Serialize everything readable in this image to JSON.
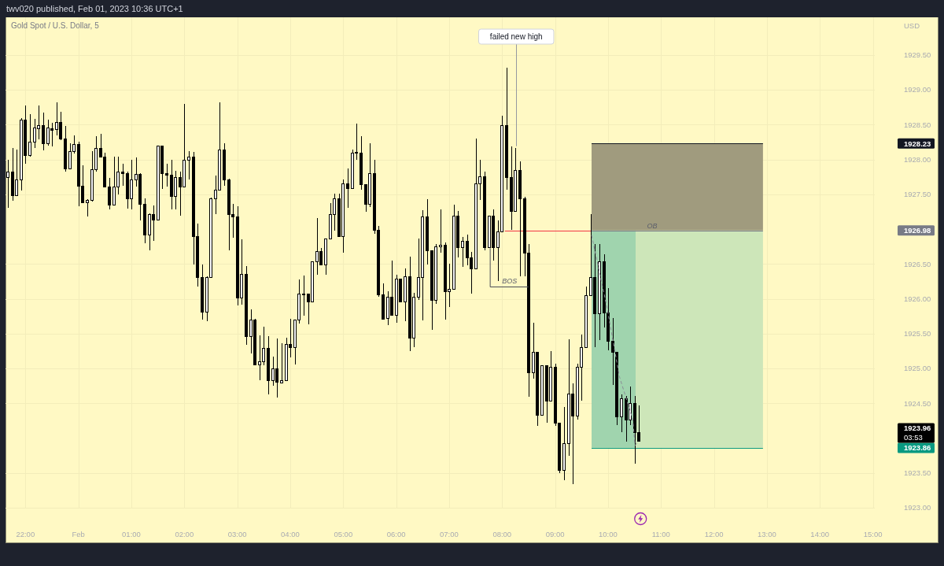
{
  "chart_data": {
    "type": "candlestick",
    "title": "Gold Spot / U.S. Dollar, 5",
    "ylabel": "USD",
    "categories": [
      null,
      null,
      null,
      null,
      "22:00",
      null,
      null,
      null,
      null,
      null,
      null,
      null,
      null,
      null,
      null,
      null,
      "Feb",
      null,
      null,
      null,
      null,
      null,
      null,
      null,
      null,
      null,
      null,
      null,
      "01:00",
      null,
      null,
      null,
      null,
      null,
      null,
      null,
      null,
      null,
      null,
      null,
      "02:00",
      null,
      null,
      null,
      null,
      null,
      null,
      null,
      null,
      null,
      null,
      null,
      "03:00",
      null,
      null,
      null,
      null,
      null,
      null,
      null,
      null,
      null,
      null,
      null,
      "04:00",
      null,
      null,
      null,
      null,
      null,
      null,
      null,
      null,
      null,
      null,
      null,
      "05:00",
      null,
      null,
      null,
      null,
      null,
      null,
      null,
      null,
      null,
      null,
      null,
      "06:00",
      null,
      null,
      null,
      null,
      null,
      null,
      null,
      null,
      null,
      null,
      null,
      "07:00",
      null,
      null,
      null,
      null,
      null,
      null,
      null,
      null,
      null,
      null,
      null,
      "08:00",
      null,
      null,
      null,
      null,
      null,
      null,
      null,
      null,
      null,
      null,
      null,
      "09:00",
      null,
      null,
      null,
      null,
      null,
      null,
      null,
      null,
      null,
      null,
      null,
      "10:00",
      null,
      null,
      null,
      null,
      null,
      null,
      null,
      null,
      null,
      null,
      null,
      "11:00",
      null,
      null,
      null,
      null,
      null,
      null,
      null,
      null,
      null,
      null,
      null,
      "12:00",
      null,
      null,
      null,
      null,
      null,
      null,
      null,
      null,
      null,
      null,
      null,
      "13:00",
      null,
      null,
      null,
      null,
      null,
      null,
      null,
      null,
      null,
      null,
      null,
      "14:00",
      null,
      null,
      null,
      null,
      null,
      null,
      null,
      null,
      null,
      null,
      null,
      "15:00"
    ],
    "ohlc": [
      [
        1927.74,
        1928.0,
        1927.3,
        1927.82
      ],
      [
        1927.82,
        1928.16,
        1927.41,
        1927.48
      ],
      [
        1927.48,
        1928.14,
        1927.48,
        1927.71
      ],
      [
        1927.71,
        1928.59,
        1927.55,
        1928.57
      ],
      [
        1928.57,
        1928.78,
        1927.94,
        1928.06
      ],
      [
        1928.06,
        1928.65,
        1928.04,
        1928.25
      ],
      [
        1928.25,
        1928.58,
        1928.16,
        1928.45
      ],
      [
        1928.44,
        1928.77,
        1928.29,
        1928.49
      ],
      [
        1928.49,
        1928.67,
        1928.13,
        1928.23
      ],
      [
        1928.23,
        1928.57,
        1928.2,
        1928.45
      ],
      [
        1928.44,
        1928.53,
        1928.19,
        1928.42
      ],
      [
        1928.43,
        1928.82,
        1928.35,
        1928.53
      ],
      [
        1928.53,
        1928.68,
        1928.28,
        1928.29
      ],
      [
        1928.29,
        1928.48,
        1927.82,
        1927.87
      ],
      [
        1927.87,
        1928.23,
        1927.87,
        1928.11
      ],
      [
        1928.11,
        1928.34,
        1928.08,
        1928.22
      ],
      [
        1928.22,
        1928.26,
        1927.33,
        1927.62
      ],
      [
        1927.62,
        1927.92,
        1927.38,
        1927.38
      ],
      [
        1927.38,
        1927.43,
        1927.18,
        1927.41
      ],
      [
        1927.41,
        1928.12,
        1927.4,
        1927.85
      ],
      [
        1927.85,
        1928.33,
        1927.82,
        1928.16
      ],
      [
        1928.16,
        1928.37,
        1928.03,
        1928.03
      ],
      [
        1928.03,
        1928.1,
        1927.61,
        1927.61
      ],
      [
        1927.61,
        1927.73,
        1927.28,
        1927.35
      ],
      [
        1927.35,
        1928.04,
        1927.35,
        1927.6
      ],
      [
        1927.6,
        1928.04,
        1927.5,
        1927.82
      ],
      [
        1927.82,
        1927.94,
        1927.62,
        1927.8
      ],
      [
        1927.8,
        1927.83,
        1927.29,
        1927.43
      ],
      [
        1927.43,
        1927.99,
        1927.28,
        1927.71
      ],
      [
        1927.71,
        1928.03,
        1927.61,
        1927.79
      ],
      [
        1927.79,
        1927.8,
        1927.13,
        1927.36
      ],
      [
        1927.36,
        1927.44,
        1926.8,
        1926.92
      ],
      [
        1926.92,
        1927.23,
        1926.7,
        1927.21
      ],
      [
        1927.21,
        1927.34,
        1926.83,
        1927.13
      ],
      [
        1927.13,
        1928.2,
        1927.12,
        1928.19
      ],
      [
        1928.19,
        1928.2,
        1927.58,
        1927.8
      ],
      [
        1927.8,
        1927.94,
        1927.61,
        1927.77
      ],
      [
        1927.77,
        1928.0,
        1927.28,
        1927.47
      ],
      [
        1927.47,
        1927.84,
        1927.28,
        1927.74
      ],
      [
        1927.74,
        1927.82,
        1927.19,
        1927.6
      ],
      [
        1927.6,
        1928.8,
        1927.6,
        1927.99
      ],
      [
        1927.99,
        1928.12,
        1927.71,
        1928.03
      ],
      [
        1928.03,
        1928.11,
        1926.49,
        1926.89
      ],
      [
        1926.89,
        1927.08,
        1926.17,
        1926.31
      ],
      [
        1926.31,
        1926.49,
        1925.7,
        1925.81
      ],
      [
        1925.81,
        1926.32,
        1925.68,
        1926.3
      ],
      [
        1926.3,
        1927.45,
        1926.3,
        1927.43
      ],
      [
        1927.43,
        1927.77,
        1927.22,
        1927.56
      ],
      [
        1927.56,
        1928.82,
        1927.56,
        1928.14
      ],
      [
        1928.14,
        1928.23,
        1927.62,
        1927.71
      ],
      [
        1927.71,
        1927.72,
        1926.7,
        1927.21
      ],
      [
        1927.21,
        1927.36,
        1926.88,
        1927.18
      ],
      [
        1927.18,
        1927.33,
        1925.9,
        1926.01
      ],
      [
        1926.01,
        1926.85,
        1925.92,
        1926.35
      ],
      [
        1926.35,
        1926.47,
        1925.34,
        1925.46
      ],
      [
        1925.46,
        1925.85,
        1925.21,
        1925.7
      ],
      [
        1925.7,
        1925.71,
        1925.05,
        1925.05
      ],
      [
        1925.05,
        1925.48,
        1924.83,
        1925.1
      ],
      [
        1925.1,
        1925.6,
        1925.05,
        1925.29
      ],
      [
        1925.29,
        1925.46,
        1924.63,
        1924.82
      ],
      [
        1924.82,
        1925.17,
        1924.75,
        1925.0
      ],
      [
        1925.0,
        1925.43,
        1924.58,
        1924.8
      ],
      [
        1924.79,
        1925.36,
        1924.79,
        1924.82
      ],
      [
        1924.82,
        1925.44,
        1924.82,
        1925.35
      ],
      [
        1925.35,
        1925.71,
        1925.16,
        1925.3
      ],
      [
        1925.3,
        1925.7,
        1925.06,
        1925.69
      ],
      [
        1925.69,
        1926.28,
        1925.64,
        1926.07
      ],
      [
        1926.06,
        1926.33,
        1925.76,
        1926.07
      ],
      [
        1926.07,
        1926.07,
        1925.63,
        1925.96
      ],
      [
        1925.96,
        1926.53,
        1925.96,
        1926.53
      ],
      [
        1926.53,
        1927.16,
        1926.35,
        1926.68
      ],
      [
        1926.68,
        1926.73,
        1926.48,
        1926.49
      ],
      [
        1926.49,
        1926.87,
        1926.34,
        1926.86
      ],
      [
        1926.86,
        1927.37,
        1926.86,
        1927.21
      ],
      [
        1927.21,
        1927.51,
        1926.98,
        1927.43
      ],
      [
        1927.43,
        1927.51,
        1926.89,
        1926.89
      ],
      [
        1926.89,
        1927.71,
        1926.66,
        1927.65
      ],
      [
        1927.65,
        1927.87,
        1927.3,
        1927.58
      ],
      [
        1927.58,
        1928.14,
        1927.58,
        1928.09
      ],
      [
        1928.09,
        1928.52,
        1928.0,
        1928.1
      ],
      [
        1928.09,
        1928.33,
        1927.57,
        1927.64
      ],
      [
        1927.64,
        1927.65,
        1927.25,
        1927.36
      ],
      [
        1927.36,
        1928.23,
        1927.32,
        1927.8
      ],
      [
        1927.8,
        1928.0,
        1926.93,
        1926.98
      ],
      [
        1926.98,
        1927.05,
        1926.03,
        1926.06
      ],
      [
        1926.06,
        1926.22,
        1925.7,
        1925.71
      ],
      [
        1925.72,
        1926.11,
        1925.62,
        1926.02
      ],
      [
        1926.02,
        1926.55,
        1925.76,
        1925.76
      ],
      [
        1925.76,
        1926.34,
        1925.65,
        1926.28
      ],
      [
        1926.28,
        1926.29,
        1925.95,
        1925.95
      ],
      [
        1925.95,
        1926.44,
        1925.68,
        1926.32
      ],
      [
        1926.32,
        1926.61,
        1925.25,
        1925.43
      ],
      [
        1925.43,
        1926.09,
        1925.31,
        1926.02
      ],
      [
        1926.02,
        1926.86,
        1925.98,
        1926.3
      ],
      [
        1926.3,
        1927.27,
        1925.69,
        1927.18
      ],
      [
        1927.18,
        1927.43,
        1926.49,
        1926.69
      ],
      [
        1926.69,
        1926.69,
        1925.55,
        1925.98
      ],
      [
        1925.98,
        1926.79,
        1925.93,
        1926.75
      ],
      [
        1926.75,
        1927.28,
        1926.66,
        1926.77
      ],
      [
        1926.77,
        1926.81,
        1925.7,
        1926.1
      ],
      [
        1926.1,
        1926.5,
        1925.88,
        1926.14
      ],
      [
        1926.14,
        1927.35,
        1926.14,
        1927.19
      ],
      [
        1927.19,
        1927.26,
        1926.59,
        1926.73
      ],
      [
        1926.73,
        1926.89,
        1926.46,
        1926.82
      ],
      [
        1926.82,
        1926.92,
        1926.48,
        1926.59
      ],
      [
        1926.59,
        1926.67,
        1926.07,
        1926.43
      ],
      [
        1926.43,
        1928.3,
        1926.43,
        1927.65
      ],
      [
        1927.65,
        1928.0,
        1927.42,
        1927.75
      ],
      [
        1927.75,
        1927.83,
        1926.69,
        1926.73
      ],
      [
        1926.73,
        1927.19,
        1926.73,
        1927.19
      ],
      [
        1927.19,
        1927.28,
        1926.55,
        1926.74
      ],
      [
        1926.74,
        1927.13,
        1926.25,
        1926.96
      ],
      [
        1926.96,
        1928.63,
        1926.96,
        1928.49
      ],
      [
        1928.49,
        1929.32,
        1927.57,
        1927.74
      ],
      [
        1927.74,
        1928.19,
        1926.99,
        1927.26
      ],
      [
        1927.26,
        1928.16,
        1927.25,
        1927.84
      ],
      [
        1927.84,
        1927.97,
        1926.32,
        1927.43
      ],
      [
        1927.43,
        1927.46,
        1926.32,
        1926.66
      ],
      [
        1926.66,
        1926.78,
        1924.59,
        1924.94
      ],
      [
        1924.94,
        1925.66,
        1924.85,
        1925.23
      ],
      [
        1925.23,
        1925.24,
        1924.18,
        1924.33
      ],
      [
        1924.33,
        1925.04,
        1924.33,
        1925.04
      ],
      [
        1925.04,
        1925.05,
        1924.22,
        1924.53
      ],
      [
        1924.53,
        1925.25,
        1924.53,
        1925.02
      ],
      [
        1925.02,
        1925.07,
        1924.18,
        1924.21
      ],
      [
        1924.21,
        1924.21,
        1923.5,
        1923.54
      ],
      [
        1923.54,
        1924.45,
        1923.4,
        1923.92
      ],
      [
        1923.92,
        1925.42,
        1923.75,
        1924.63
      ],
      [
        1924.63,
        1924.78,
        1923.34,
        1924.32
      ],
      [
        1924.32,
        1925.07,
        1924.27,
        1925.02
      ],
      [
        1925.02,
        1925.49,
        1924.54,
        1925.3
      ],
      [
        1925.3,
        1926.18,
        1925.3,
        1926.05
      ],
      [
        1926.05,
        1927.21,
        1926.05,
        1926.3
      ],
      [
        1926.3,
        1926.79,
        1925.31,
        1925.79
      ],
      [
        1925.79,
        1926.79,
        1925.41,
        1926.53
      ],
      [
        1926.53,
        1926.64,
        1925.59,
        1925.8
      ],
      [
        1925.8,
        1926.15,
        1925.26,
        1925.39
      ],
      [
        1925.39,
        1925.72,
        1924.76,
        1925.23
      ],
      [
        1925.23,
        1925.23,
        1924.19,
        1924.3
      ],
      [
        1924.3,
        1924.63,
        1924.09,
        1924.56
      ],
      [
        1924.56,
        1924.6,
        1923.95,
        1924.26
      ],
      [
        1924.26,
        1924.74,
        1924.19,
        1924.5
      ],
      [
        1924.5,
        1924.6,
        1923.63,
        1924.08
      ],
      [
        1924.08,
        1924.47,
        1923.96,
        1923.96
      ],
      null,
      null,
      null,
      null,
      null,
      null,
      null,
      null,
      null,
      null,
      null,
      null,
      null,
      null,
      null,
      null,
      null,
      null,
      null,
      null,
      null,
      null,
      null,
      null,
      null,
      null,
      null,
      null,
      null,
      null,
      null,
      null,
      null,
      null,
      null,
      null,
      null,
      null,
      null,
      null,
      null,
      null,
      null,
      null,
      null,
      null,
      null,
      null,
      null,
      null,
      null,
      null,
      null
    ],
    "color": "#000000",
    "ylim": [
      1923,
      1930.04
    ],
    "yticks": [
      {
        "value": 1923,
        "label": "1923.00"
      },
      {
        "value": 1923.5,
        "label": "1923.50"
      },
      {
        "value": 1923.86,
        "label": "1923.86"
      },
      {
        "value": 1924.5,
        "label": "1924.50"
      },
      {
        "value": 1925,
        "label": "1925.00"
      },
      {
        "value": 1925.5,
        "label": "1925.50"
      },
      {
        "value": 1926,
        "label": "1926.00"
      },
      {
        "value": 1926.5,
        "label": "1926.50"
      },
      {
        "value": 1926.98,
        "label": "1926.98"
      },
      {
        "value": 1927.5,
        "label": "1927.50"
      },
      {
        "value": 1928,
        "label": "1928.00"
      },
      {
        "value": 1928.23,
        "label": "1928.23"
      },
      {
        "value": 1928.5,
        "label": "1928.50"
      },
      {
        "value": 1929,
        "label": "1929.00"
      },
      {
        "value": 1929.5,
        "label": "1929.50"
      }
    ],
    "grid": true,
    "bands": [
      {
        "axis": "y",
        "from": 1926.98,
        "to": 1928.23,
        "color": "#a09b7e"
      },
      {
        "axis": "y",
        "from": 1923.86,
        "to": 1926.98,
        "color": "#cde6b9"
      }
    ],
    "ref_lines": [
      {
        "axis": "y",
        "value": 1926.98,
        "color": "#f23645"
      },
      {
        "axis": "y",
        "value": 1928.23,
        "color": "#131722"
      },
      {
        "axis": "y",
        "value": 1926.98,
        "color": "#787b86"
      },
      {
        "axis": "y",
        "value": 1923.86,
        "color": "#089981"
      }
    ],
    "annotations": [
      "twv020 published, Feb 01, 2023 10:36 UTC+1",
      {
        "text": "failed new high",
        "y": 1928.19
      },
      "BOS",
      {
        "text": "OB",
        "y": 1926.98
      },
      "1923.96",
      "03:53"
    ]
  }
}
